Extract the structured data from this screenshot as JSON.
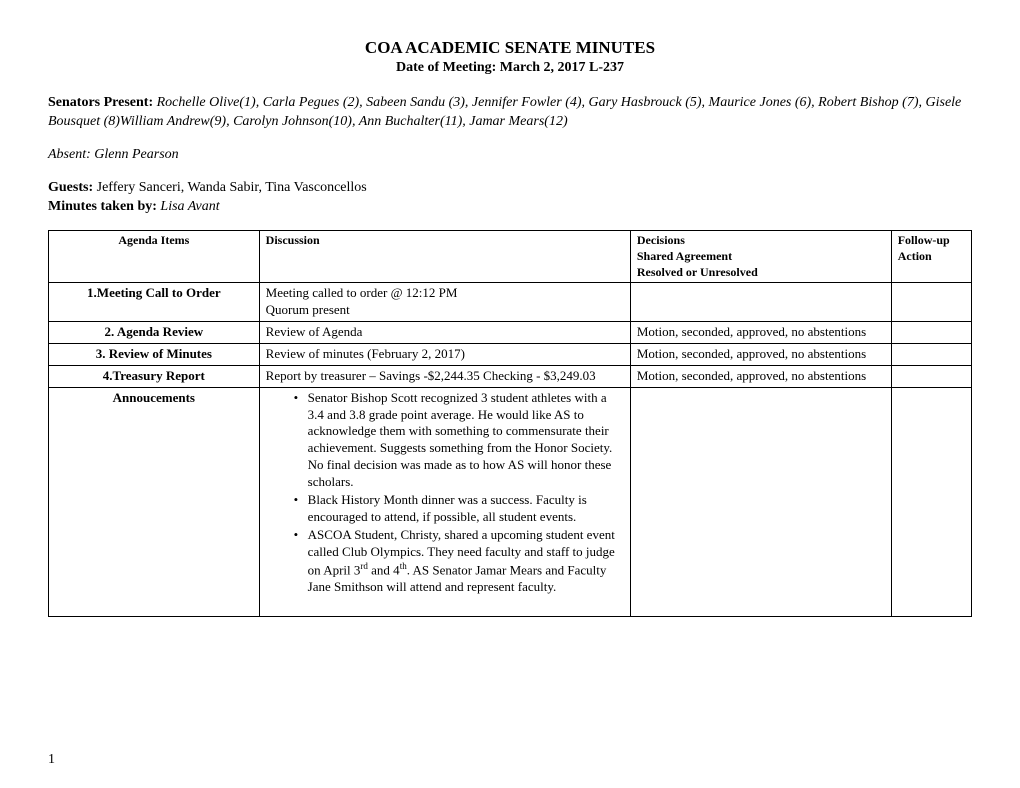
{
  "header": {
    "title": "COA ACADEMIC SENATE MINUTES",
    "subtitle": "Date of Meeting: March 2, 2017    L-237"
  },
  "intro": {
    "senators_label": "Senators Present:",
    "senators_text": " Rochelle Olive(1), Carla Pegues (2), Sabeen Sandu (3), Jennifer Fowler (4), Gary Hasbrouck (5), Maurice Jones (6), Robert Bishop (7), Gisele Bousquet (8)William Andrew(9), Carolyn Johnson(10), Ann Buchalter(11), Jamar Mears(12)",
    "absent_text": "Absent: Glenn Pearson",
    "guests_label": "Guests:",
    "guests_text": " Jeffery Sanceri, Wanda Sabir, Tina Vasconcellos",
    "minutes_label": "Minutes taken by:",
    "minutes_text": " Lisa Avant"
  },
  "table": {
    "headers": {
      "agenda": "Agenda Items",
      "discussion": "Discussion",
      "decisions_l1": "Decisions",
      "decisions_l2": "Shared Agreement",
      "decisions_l3": "Resolved or Unresolved",
      "followup_l1": "Follow-up",
      "followup_l2": "Action"
    },
    "rows": [
      {
        "agenda": "1.Meeting Call to Order",
        "discussion": "Meeting called to order @ 12:12 PM\nQuorum present",
        "decisions": "",
        "followup": ""
      },
      {
        "agenda": "2. Agenda Review",
        "discussion": "Review of Agenda",
        "decisions": "Motion, seconded, approved, no abstentions",
        "followup": ""
      },
      {
        "agenda": "3. Review of Minutes",
        "discussion": "Review of minutes (February 2, 2017)",
        "decisions": "Motion, seconded, approved, no abstentions",
        "followup": ""
      },
      {
        "agenda": "4.Treasury Report",
        "discussion": "Report by treasurer – Savings -$2,244.35  Checking - $3,249.03",
        "decisions": "Motion, seconded, approved, no abstentions",
        "followup": ""
      }
    ],
    "announcements": {
      "agenda": "Annoucements",
      "bullets": [
        "Senator Bishop Scott recognized 3 student athletes with a 3.4 and 3.8 grade point average.  He would like AS to acknowledge them with something to commensurate their achievement. Suggests something from the Honor Society. No final decision was made as to how AS will honor these scholars.",
        " Black History Month dinner was a success. Faculty is encouraged to attend, if possible, all student events.",
        "ASCOA Student, Christy, shared a upcoming student event called Club Olympics.  They need faculty and staff to judge on April 3rd and 4th.  AS Senator Jamar Mears and Faculty Jane Smithson will attend and represent faculty."
      ]
    }
  },
  "page_number": "1"
}
